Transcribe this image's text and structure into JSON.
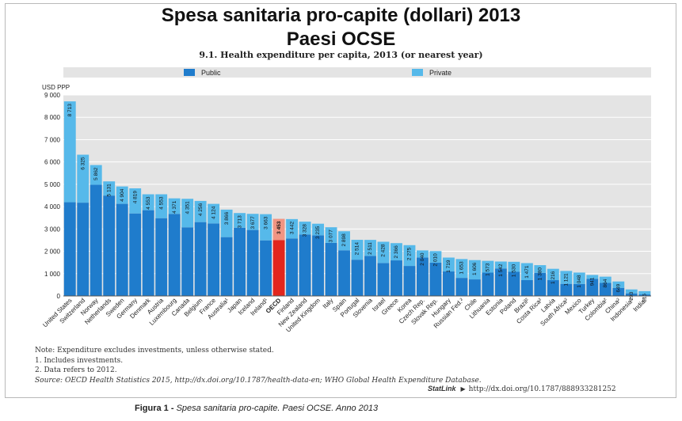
{
  "header": {
    "title_line1": "Spesa sanitaria pro-capite (dollari)  2013",
    "title_line2": "Paesi OCSE",
    "subtitle": "9.1.  Health expenditure per capita, 2013 (or nearest year)"
  },
  "notes": {
    "note": "Note:  Expenditure excludes investments, unless otherwise stated.",
    "fn1": "1.  Includes investments.",
    "fn2": "2.  Data refers to 2012.",
    "source": "Source:  OECD Health Statistics 2015, http://dx.doi.org/10.1787/health-data-en; WHO Global Health Expenditure Database.",
    "statlink_label": "StatLink",
    "statlink_url": "http://dx.doi.org/10.1787/888933281252"
  },
  "caption": {
    "label": "Figura 1 -",
    "text": " Spesa sanitaria pro-capite. Paesi OCSE. Anno 2013"
  },
  "colors": {
    "public": "#1f7ccc",
    "private": "#56b9ea",
    "oecd_public": "#e2261d",
    "oecd_private": "#f19583",
    "plot_bg": "#e4e4e4",
    "grid": "#ffffff"
  },
  "chart_data": {
    "type": "bar",
    "stacked": true,
    "ylabel": "USD PPP",
    "ylim": [
      0,
      9000
    ],
    "yticks": [
      "0",
      "1 000",
      "2 000",
      "3 000",
      "4 000",
      "5 000",
      "6 000",
      "7 000",
      "8 000",
      "9 000"
    ],
    "grid": true,
    "legend_position": "top",
    "categories": [
      "United States",
      "Switzerland",
      "Norway",
      "Netherlands",
      "Sweden",
      "Germany",
      "Denmark",
      "Austria",
      "Luxembourg",
      "Canada",
      "Belgium",
      "France",
      "Australia¹",
      "Japan",
      "Iceland",
      "Ireland¹",
      "OECD",
      "Finland",
      "New Zealand",
      "United Kingdom",
      "Italy",
      "Spain",
      "Portugal",
      "Slovenia",
      "Israel",
      "Greece",
      "Korea",
      "Czech Rep.",
      "Slovak Rep.",
      "Hungary",
      "Russian Fed.²",
      "Chile",
      "Lithuania",
      "Estonia",
      "Poland",
      "Brazil²",
      "Costa Rica²",
      "Latvia",
      "South Africa²",
      "Mexico",
      "Turkey",
      "Colombia²",
      "China²",
      "Indonesia²",
      "India²"
    ],
    "highlight_category": "OECD",
    "total_labels": [
      "8 713",
      "6 325",
      "5 862",
      "5 131",
      "4 904",
      "4 819",
      "4 553",
      "4 553",
      "4 371",
      "4 351",
      "4 256",
      "4 124",
      "3 866",
      "3 713",
      "3 677",
      "3 663",
      "3 453",
      "3 442",
      "3 328",
      "3 235",
      "3 077",
      "2 898",
      "2 514",
      "2 511",
      "2 428",
      "2 366",
      "2 275",
      "2 040",
      "2 010",
      "1 719",
      "1 653",
      "1 606",
      "1 573",
      "1 542",
      "1 530",
      "1 471",
      "1 380",
      "1 216",
      "1 121",
      "1 048",
      "941",
      "864",
      "649",
      "293",
      "215"
    ],
    "series": [
      {
        "name": "Public",
        "values": [
          4197,
          4178,
          4981,
          4495,
          4125,
          3696,
          3841,
          3484,
          3676,
          3074,
          3308,
          3247,
          2635,
          3055,
          2955,
          2491,
          2504,
          2577,
          2755,
          2716,
          2378,
          2045,
          1624,
          1797,
          1474,
          1593,
          1344,
          1723,
          1490,
          1097,
          810,
          742,
          1046,
          1231,
          1081,
          709,
          1035,
          708,
          543,
          537,
          772,
          584,
          364,
          116,
          69
        ]
      },
      {
        "name": "Private",
        "values": [
          4516,
          2147,
          881,
          636,
          779,
          1123,
          712,
          1069,
          695,
          1277,
          948,
          877,
          1231,
          658,
          722,
          1172,
          949,
          865,
          573,
          519,
          699,
          853,
          890,
          714,
          954,
          773,
          931,
          317,
          520,
          622,
          843,
          864,
          527,
          311,
          449,
          762,
          345,
          508,
          578,
          511,
          169,
          280,
          285,
          177,
          146
        ]
      }
    ]
  }
}
